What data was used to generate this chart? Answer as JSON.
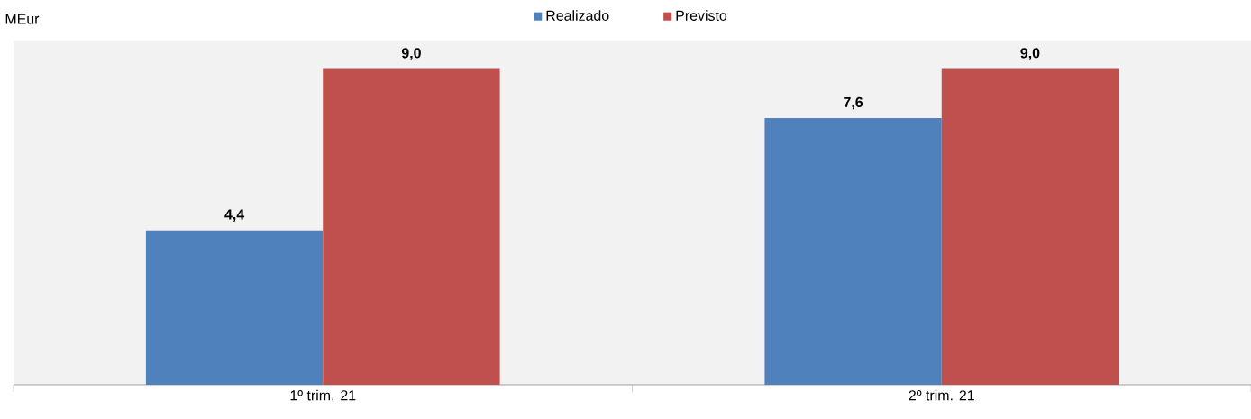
{
  "chart_data": {
    "type": "bar",
    "ylabel": "MEur",
    "categories": [
      "1º trim. 21",
      "2º trim. 21"
    ],
    "series": [
      {
        "name": "Realizado",
        "color": "#4f81bd",
        "values": [
          4.4,
          7.6
        ],
        "value_labels": [
          "4,4",
          "7,6"
        ]
      },
      {
        "name": "Previsto",
        "color": "#c0504d",
        "values": [
          9.0,
          9.0
        ],
        "value_labels": [
          "9,0",
          "9,0"
        ]
      }
    ],
    "legend": "top"
  }
}
